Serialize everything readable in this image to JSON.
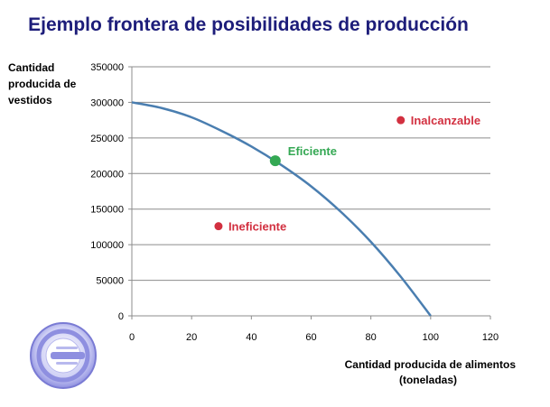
{
  "colors": {
    "title": "#1d1d7a",
    "curve": "#4a7eb0",
    "grid": "#8c8c8c",
    "efficient": "#34a853",
    "inefficient": "#d23040",
    "unreachable": "#d23040"
  },
  "logo": {
    "icon": "circular-plug-logo"
  },
  "chart_data": {
    "type": "line",
    "title": "Ejemplo frontera de posibilidades de producción",
    "ylabel": [
      "Cantidad",
      "producida de",
      "vestidos"
    ],
    "xlabel": [
      "Cantidad producida de alimentos",
      "(toneladas)"
    ],
    "xlim": [
      0,
      120
    ],
    "ylim": [
      0,
      350000
    ],
    "x_ticks": [
      0,
      20,
      40,
      60,
      80,
      100,
      120
    ],
    "y_ticks": [
      0,
      50000,
      100000,
      150000,
      200000,
      250000,
      300000,
      350000
    ],
    "grid": true,
    "series": [
      {
        "x": [
          0,
          10,
          20,
          30,
          40,
          50,
          60,
          70,
          80,
          90,
          100
        ],
        "y": [
          300000,
          292000,
          279000,
          260000,
          238000,
          212000,
          182000,
          146000,
          104000,
          55000,
          0
        ]
      }
    ],
    "points": [
      {
        "label": "Eficiente",
        "x": 48,
        "y": 218000,
        "color": "#34a853",
        "size": "large",
        "label_side": "right"
      },
      {
        "label": "Ineficiente",
        "x": 29,
        "y": 126000,
        "color": "#d23040",
        "size": "small",
        "label_side": "right"
      },
      {
        "label": "Inalcanzable",
        "x": 90,
        "y": 275000,
        "color": "#d23040",
        "size": "small",
        "label_side": "right"
      }
    ]
  }
}
